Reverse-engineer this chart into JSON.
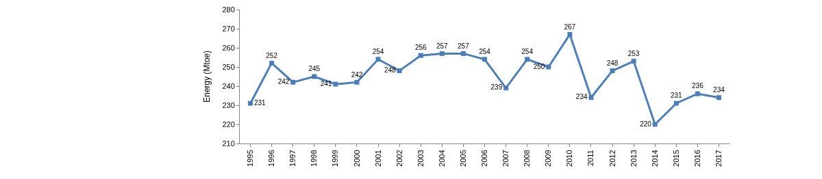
{
  "chart_data": {
    "type": "line",
    "ylabel": "Energy (Mtoe)",
    "categories": [
      "1995",
      "1996",
      "1997",
      "1998",
      "1999",
      "2000",
      "2001",
      "2002",
      "2003",
      "2004",
      "2005",
      "2006",
      "2007",
      "2008",
      "2009",
      "2010",
      "2011",
      "2012",
      "2013",
      "2014",
      "2015",
      "2016",
      "2017"
    ],
    "series": [
      {
        "color": "#4a7ebb",
        "values": [
          231,
          252,
          242,
          245,
          241,
          242,
          254,
          248,
          256,
          257,
          257,
          254,
          239,
          254,
          250,
          267,
          234,
          248,
          253,
          220,
          231,
          236,
          234
        ]
      }
    ],
    "ylim": [
      210,
      280
    ],
    "yticks": [
      210,
      220,
      230,
      240,
      250,
      260,
      270,
      280
    ],
    "data_labels": true,
    "legend": false,
    "marker": "square",
    "line_style": "solid"
  }
}
